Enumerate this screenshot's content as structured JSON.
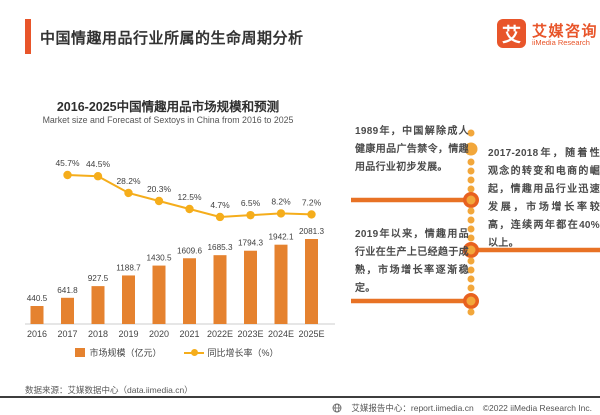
{
  "header": {
    "title": "中国情趣用品行业所属的生命周期分析",
    "logo": {
      "icon_glyph": "艾",
      "name_cn": "艾媒咨询",
      "name_en": "iiMedia Research"
    }
  },
  "chart": {
    "legend": {
      "bar_label": "市场规模（亿元）",
      "line_label": "同比增长率（%）"
    }
  },
  "chart_data": {
    "type": "bar",
    "title": "2016-2025中国情趣用品市场规模和预测",
    "subtitle": "Market size and Forecast of Sextoys in China from 2016 to 2025",
    "categories": [
      "2016",
      "2017",
      "2018",
      "2019",
      "2020",
      "2021",
      "2022E",
      "2023E",
      "2024E",
      "2025E"
    ],
    "series": [
      {
        "name": "市场规模（亿元）",
        "type": "bar",
        "unit": "亿元",
        "values": [
          440.5,
          641.8,
          927.5,
          1188.7,
          1430.5,
          1609.6,
          1685.3,
          1794.3,
          1942.1,
          2081.3
        ]
      },
      {
        "name": "同比增长率（%）",
        "type": "line",
        "unit": "%",
        "values": [
          null,
          45.7,
          44.5,
          28.2,
          20.3,
          12.5,
          4.7,
          6.5,
          8.2,
          7.2
        ]
      }
    ],
    "legend_position": "bottom",
    "grid": false,
    "value_labels": true
  },
  "annotations": [
    {
      "year": "1989",
      "text": "1989年，中国解除成人健康用品广告禁令，情趣用品行业初步发展。"
    },
    {
      "year": "2017-2018",
      "text": "2017-2018年，随着性观念的转变和电商的崛起，情趣用品行业迅速发展，市场增长率较高，连续两年都在40%以上。"
    },
    {
      "year": "2019",
      "text": "2019年以来，情趣用品行业在生产上已经趋于成熟，市场增长率逐渐稳定。"
    }
  ],
  "footer": {
    "source": "数据来源：艾媒数据中心（data.iimedia.cn）",
    "report_center": "艾媒报告中心：report.iimedia.cn",
    "copyright": "©2022 iiMedia Research Inc."
  },
  "colors": {
    "accent": "#E8552A",
    "bar": "#E5822F",
    "line": "#F5AD1B",
    "connector": "#E87225",
    "dot_small": "#F2A73B",
    "node_ring": "#E8611F"
  }
}
